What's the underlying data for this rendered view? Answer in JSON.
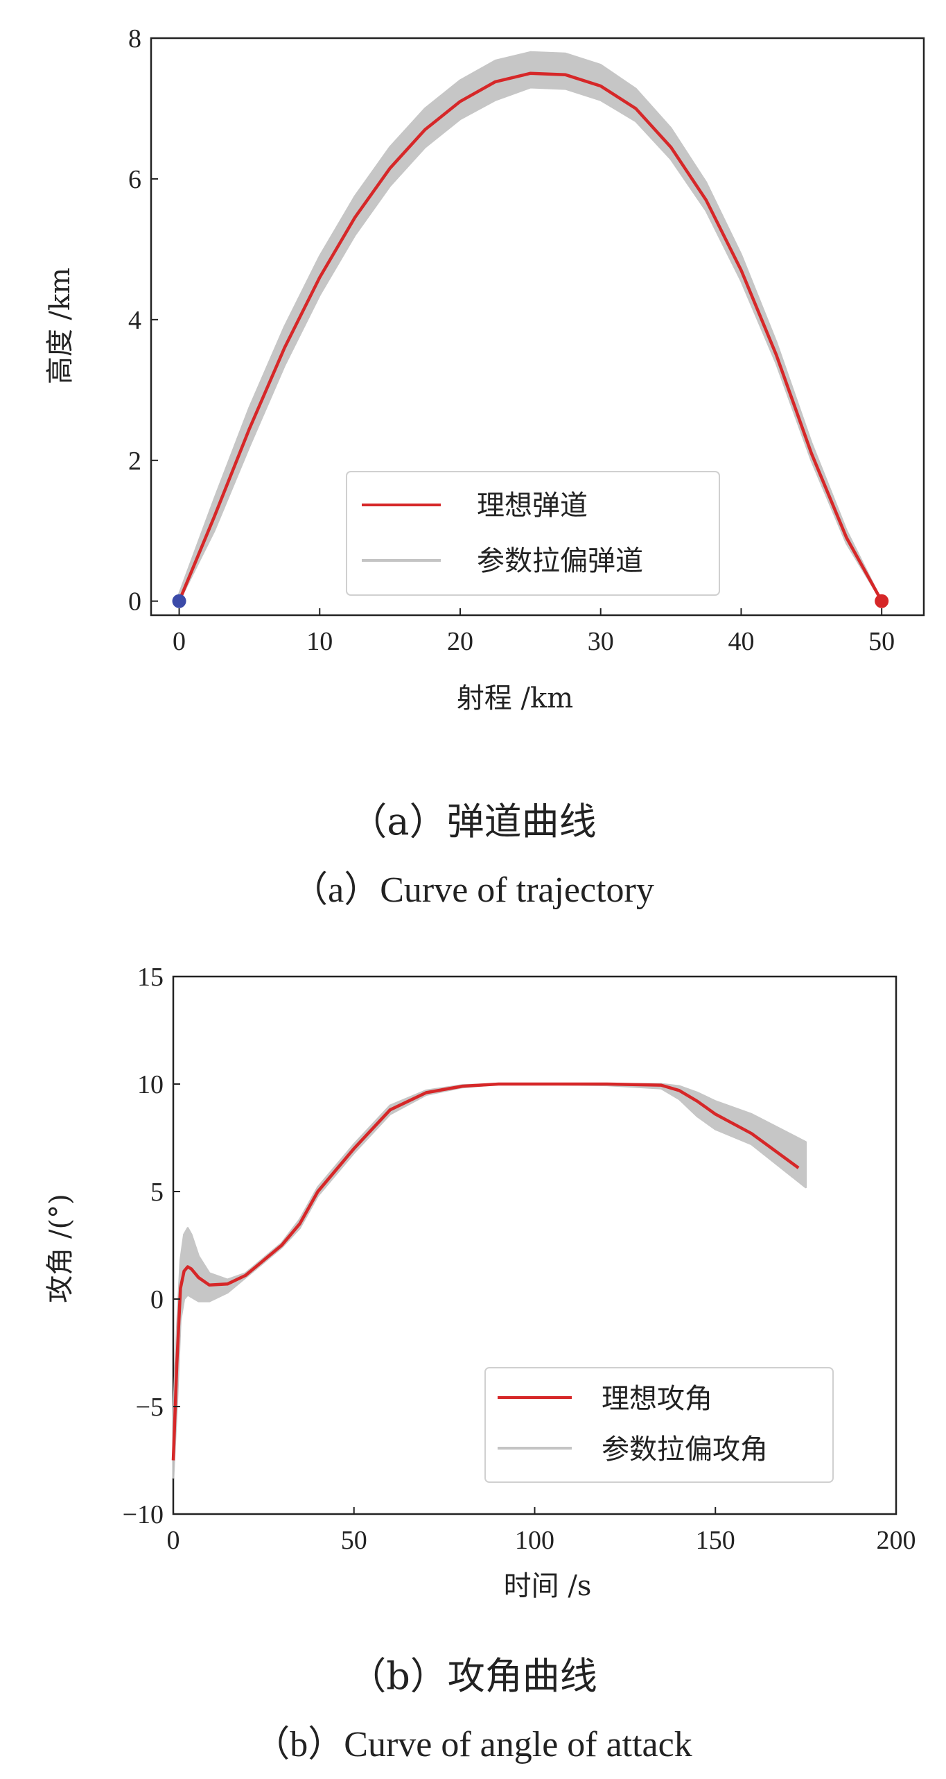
{
  "chart_data": [
    {
      "type": "line",
      "xlabel": "射程 /km",
      "ylabel": "高度 /km",
      "xlim": [
        -2,
        53
      ],
      "ylim": [
        -0.2,
        8
      ],
      "xticks": [
        0,
        10,
        20,
        30,
        40,
        50
      ],
      "yticks": [
        0,
        2,
        4,
        6,
        8
      ],
      "series": [
        {
          "name": "理想弹道",
          "color": "#d62728",
          "x": [
            0,
            2.5,
            5,
            7.5,
            10,
            12.5,
            15,
            17.5,
            20,
            22.5,
            25,
            27.5,
            30,
            32.5,
            35,
            37.5,
            40,
            42.5,
            45,
            47.5,
            50
          ],
          "y": [
            0,
            1.2,
            2.45,
            3.6,
            4.6,
            5.45,
            6.15,
            6.7,
            7.1,
            7.38,
            7.5,
            7.48,
            7.32,
            7.0,
            6.45,
            5.7,
            4.7,
            3.5,
            2.1,
            0.9,
            0
          ]
        },
        {
          "name": "参数拉偏弹道",
          "color": "#c4c4c4",
          "x": [
            0,
            2.5,
            5,
            7.5,
            10,
            12.5,
            15,
            17.5,
            20,
            22.5,
            25,
            27.5,
            30,
            32.5,
            35,
            37.5,
            40,
            42.5,
            45,
            47.5,
            50
          ],
          "y_upper": [
            0.1,
            1.45,
            2.75,
            3.9,
            4.9,
            5.75,
            6.45,
            7.0,
            7.4,
            7.68,
            7.8,
            7.78,
            7.62,
            7.28,
            6.72,
            5.95,
            4.92,
            3.68,
            2.25,
            1.0,
            0
          ],
          "y_lower": [
            0,
            1.0,
            2.2,
            3.35,
            4.35,
            5.2,
            5.9,
            6.45,
            6.85,
            7.12,
            7.3,
            7.28,
            7.12,
            6.82,
            6.28,
            5.55,
            4.55,
            3.38,
            2.0,
            0.82,
            0
          ]
        }
      ],
      "markers": [
        {
          "x": 0,
          "y": 0,
          "color": "#3b4aa8"
        },
        {
          "x": 50,
          "y": 0,
          "color": "#d62728"
        }
      ],
      "legend_position": "lower-center",
      "grid": false
    },
    {
      "type": "line",
      "xlabel": "时间 /s",
      "ylabel": "攻角 /(°)",
      "xlim": [
        0,
        200
      ],
      "ylim": [
        -10,
        15
      ],
      "xticks": [
        0,
        50,
        100,
        150,
        200
      ],
      "yticks": [
        -10,
        -5,
        0,
        5,
        10,
        15
      ],
      "series": [
        {
          "name": "理想攻角",
          "color": "#d62728",
          "x": [
            0,
            1,
            2,
            3,
            4,
            5,
            7,
            10,
            15,
            20,
            25,
            30,
            35,
            40,
            50,
            60,
            70,
            80,
            90,
            100,
            120,
            135,
            140,
            145,
            150,
            160,
            173
          ],
          "y": [
            -7.5,
            -3.0,
            0.5,
            1.3,
            1.5,
            1.4,
            1.0,
            0.65,
            0.7,
            1.1,
            1.8,
            2.5,
            3.5,
            5.0,
            7.0,
            8.8,
            9.6,
            9.9,
            10.0,
            10.0,
            10.0,
            9.95,
            9.7,
            9.2,
            8.6,
            7.7,
            6.1
          ]
        },
        {
          "name": "参数拉偏攻角",
          "color": "#c4c4c4",
          "x": [
            0,
            1,
            2,
            3,
            4,
            5,
            7,
            10,
            15,
            20,
            25,
            30,
            35,
            40,
            50,
            60,
            70,
            80,
            90,
            100,
            120,
            135,
            140,
            145,
            150,
            160,
            175
          ],
          "y_upper": [
            -5.5,
            -1.5,
            1.8,
            3.0,
            3.3,
            3.0,
            2.0,
            1.2,
            0.9,
            1.2,
            1.9,
            2.6,
            3.7,
            5.2,
            7.2,
            9.0,
            9.7,
            9.95,
            10.0,
            10.0,
            10.0,
            10.0,
            9.9,
            9.6,
            9.2,
            8.6,
            7.3
          ],
          "y_lower": [
            -8.3,
            -5.0,
            -1.0,
            0.0,
            0.2,
            0.1,
            -0.1,
            -0.1,
            0.3,
            1.0,
            1.7,
            2.4,
            3.3,
            4.8,
            6.8,
            8.6,
            9.5,
            9.85,
            10.0,
            10.0,
            9.95,
            9.8,
            9.3,
            8.5,
            7.9,
            7.2,
            5.2
          ]
        }
      ],
      "legend_position": "lower-right",
      "grid": false
    }
  ],
  "captions": {
    "a_cn": "（a）弹道曲线",
    "a_en": "（a）Curve of trajectory",
    "b_cn": "（b）攻角曲线",
    "b_en": "（b）Curve of angle of attack"
  }
}
